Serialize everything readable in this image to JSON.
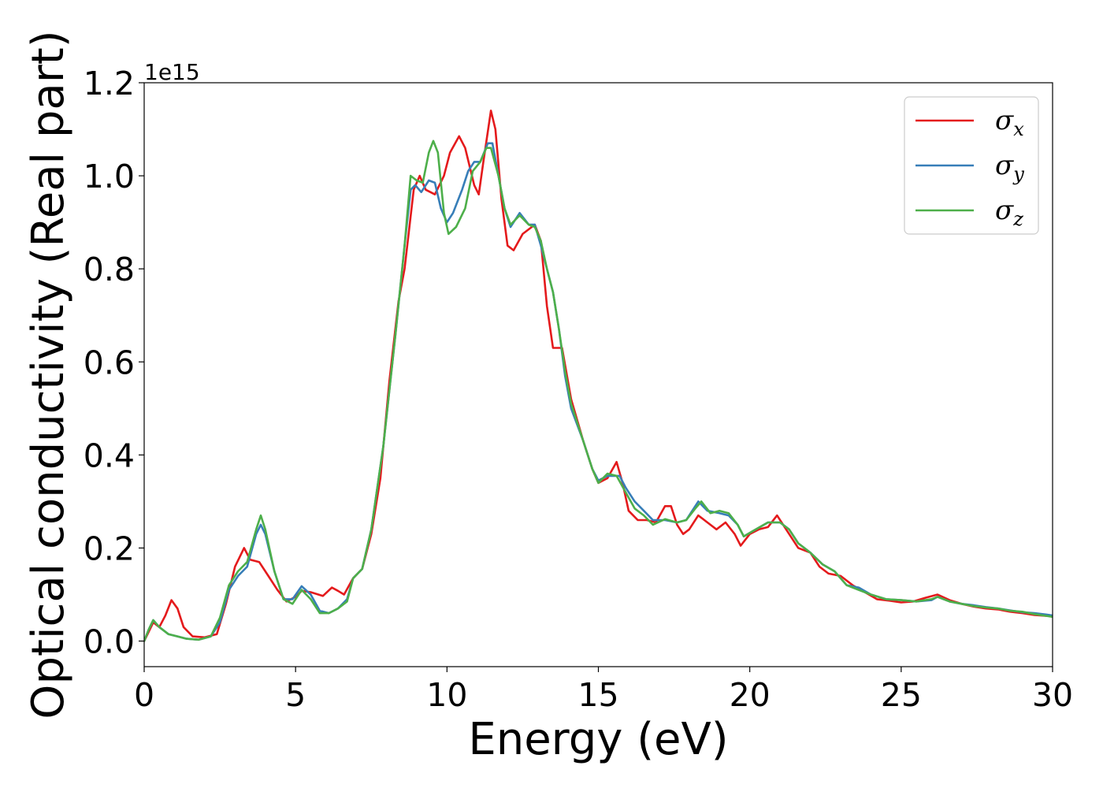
{
  "chart_data": {
    "type": "line",
    "xlabel": "Energy (eV)",
    "ylabel": "Optical conductivity (Real part)",
    "y_offset_label": "1e15",
    "xlim": [
      0,
      30
    ],
    "ylim": [
      -0.055,
      1.2
    ],
    "xticks": [
      0,
      5,
      10,
      15,
      20,
      25,
      30
    ],
    "xtick_labels": [
      "0",
      "5",
      "10",
      "15",
      "20",
      "25",
      "30"
    ],
    "yticks": [
      0.0,
      0.2,
      0.4,
      0.6,
      0.8,
      1.0,
      1.2
    ],
    "ytick_labels": [
      "0.0",
      "0.2",
      "0.4",
      "0.6",
      "0.8",
      "1.0",
      "1.2"
    ],
    "grid": false,
    "legend_position": "top-right",
    "series": [
      {
        "name": "σx",
        "sym": "σ",
        "sub": "x",
        "color": "#e41a1c",
        "points": [
          [
            0,
            0
          ],
          [
            0.15,
            0.02
          ],
          [
            0.3,
            0.04
          ],
          [
            0.5,
            0.03
          ],
          [
            0.7,
            0.055
          ],
          [
            0.9,
            0.088
          ],
          [
            1.1,
            0.07
          ],
          [
            1.3,
            0.03
          ],
          [
            1.6,
            0.01
          ],
          [
            2.0,
            0.008
          ],
          [
            2.4,
            0.015
          ],
          [
            2.7,
            0.08
          ],
          [
            3.0,
            0.16
          ],
          [
            3.3,
            0.2
          ],
          [
            3.5,
            0.175
          ],
          [
            3.8,
            0.17
          ],
          [
            4.1,
            0.14
          ],
          [
            4.4,
            0.11
          ],
          [
            4.7,
            0.085
          ],
          [
            5.0,
            0.095
          ],
          [
            5.2,
            0.108
          ],
          [
            5.5,
            0.105
          ],
          [
            5.9,
            0.097
          ],
          [
            6.2,
            0.115
          ],
          [
            6.4,
            0.108
          ],
          [
            6.6,
            0.1
          ],
          [
            6.9,
            0.135
          ],
          [
            7.2,
            0.155
          ],
          [
            7.5,
            0.23
          ],
          [
            7.8,
            0.35
          ],
          [
            8.1,
            0.56
          ],
          [
            8.4,
            0.73
          ],
          [
            8.6,
            0.8
          ],
          [
            8.9,
            0.97
          ],
          [
            9.1,
            1.0
          ],
          [
            9.3,
            0.97
          ],
          [
            9.6,
            0.96
          ],
          [
            9.9,
            1.0
          ],
          [
            10.1,
            1.05
          ],
          [
            10.4,
            1.085
          ],
          [
            10.6,
            1.06
          ],
          [
            10.9,
            0.98
          ],
          [
            11.05,
            0.96
          ],
          [
            11.2,
            1.03
          ],
          [
            11.45,
            1.14
          ],
          [
            11.6,
            1.1
          ],
          [
            11.8,
            0.95
          ],
          [
            12.0,
            0.85
          ],
          [
            12.2,
            0.84
          ],
          [
            12.5,
            0.875
          ],
          [
            12.9,
            0.895
          ],
          [
            13.1,
            0.86
          ],
          [
            13.3,
            0.72
          ],
          [
            13.5,
            0.63
          ],
          [
            13.8,
            0.63
          ],
          [
            14.1,
            0.52
          ],
          [
            14.5,
            0.43
          ],
          [
            14.8,
            0.37
          ],
          [
            15.0,
            0.34
          ],
          [
            15.3,
            0.35
          ],
          [
            15.6,
            0.385
          ],
          [
            15.8,
            0.34
          ],
          [
            16.0,
            0.28
          ],
          [
            16.3,
            0.26
          ],
          [
            16.6,
            0.26
          ],
          [
            16.9,
            0.255
          ],
          [
            17.2,
            0.29
          ],
          [
            17.4,
            0.29
          ],
          [
            17.6,
            0.25
          ],
          [
            17.8,
            0.23
          ],
          [
            18.0,
            0.24
          ],
          [
            18.3,
            0.27
          ],
          [
            18.6,
            0.255
          ],
          [
            18.9,
            0.24
          ],
          [
            19.2,
            0.255
          ],
          [
            19.5,
            0.23
          ],
          [
            19.7,
            0.205
          ],
          [
            20.0,
            0.23
          ],
          [
            20.3,
            0.24
          ],
          [
            20.6,
            0.245
          ],
          [
            20.9,
            0.27
          ],
          [
            21.2,
            0.24
          ],
          [
            21.6,
            0.2
          ],
          [
            22.0,
            0.19
          ],
          [
            22.3,
            0.16
          ],
          [
            22.6,
            0.145
          ],
          [
            23.0,
            0.14
          ],
          [
            23.4,
            0.12
          ],
          [
            23.8,
            0.105
          ],
          [
            24.2,
            0.09
          ],
          [
            24.6,
            0.087
          ],
          [
            25.0,
            0.083
          ],
          [
            25.4,
            0.085
          ],
          [
            25.8,
            0.093
          ],
          [
            26.2,
            0.1
          ],
          [
            26.6,
            0.088
          ],
          [
            27.0,
            0.08
          ],
          [
            27.4,
            0.074
          ],
          [
            27.8,
            0.07
          ],
          [
            28.2,
            0.068
          ],
          [
            28.6,
            0.063
          ],
          [
            29.0,
            0.06
          ],
          [
            29.4,
            0.056
          ],
          [
            29.8,
            0.054
          ],
          [
            30.0,
            0.054
          ]
        ]
      },
      {
        "name": "σy",
        "sym": "σ",
        "sub": "y",
        "color": "#377eb8",
        "points": [
          [
            0,
            0
          ],
          [
            0.15,
            0.025
          ],
          [
            0.3,
            0.045
          ],
          [
            0.5,
            0.03
          ],
          [
            0.8,
            0.015
          ],
          [
            1.1,
            0.01
          ],
          [
            1.4,
            0.005
          ],
          [
            1.8,
            0.003
          ],
          [
            2.2,
            0.01
          ],
          [
            2.5,
            0.04
          ],
          [
            2.8,
            0.11
          ],
          [
            3.1,
            0.14
          ],
          [
            3.4,
            0.16
          ],
          [
            3.7,
            0.23
          ],
          [
            3.85,
            0.25
          ],
          [
            4.0,
            0.23
          ],
          [
            4.3,
            0.15
          ],
          [
            4.6,
            0.09
          ],
          [
            4.9,
            0.09
          ],
          [
            5.2,
            0.118
          ],
          [
            5.5,
            0.1
          ],
          [
            5.8,
            0.065
          ],
          [
            6.1,
            0.06
          ],
          [
            6.4,
            0.07
          ],
          [
            6.7,
            0.09
          ],
          [
            6.9,
            0.135
          ],
          [
            7.2,
            0.155
          ],
          [
            7.5,
            0.24
          ],
          [
            7.9,
            0.42
          ],
          [
            8.3,
            0.66
          ],
          [
            8.6,
            0.85
          ],
          [
            8.8,
            0.97
          ],
          [
            8.95,
            0.98
          ],
          [
            9.15,
            0.965
          ],
          [
            9.4,
            0.99
          ],
          [
            9.6,
            0.985
          ],
          [
            9.8,
            0.93
          ],
          [
            10.0,
            0.9
          ],
          [
            10.2,
            0.92
          ],
          [
            10.5,
            0.97
          ],
          [
            10.7,
            1.01
          ],
          [
            10.9,
            1.03
          ],
          [
            11.1,
            1.03
          ],
          [
            11.35,
            1.07
          ],
          [
            11.5,
            1.07
          ],
          [
            11.7,
            1.0
          ],
          [
            11.9,
            0.93
          ],
          [
            12.1,
            0.89
          ],
          [
            12.4,
            0.92
          ],
          [
            12.7,
            0.895
          ],
          [
            12.9,
            0.895
          ],
          [
            13.1,
            0.85
          ],
          [
            13.3,
            0.8
          ],
          [
            13.5,
            0.75
          ],
          [
            13.7,
            0.67
          ],
          [
            13.9,
            0.57
          ],
          [
            14.1,
            0.5
          ],
          [
            14.5,
            0.43
          ],
          [
            14.8,
            0.37
          ],
          [
            15.0,
            0.345
          ],
          [
            15.3,
            0.355
          ],
          [
            15.5,
            0.355
          ],
          [
            15.7,
            0.355
          ],
          [
            15.9,
            0.33
          ],
          [
            16.2,
            0.3
          ],
          [
            16.5,
            0.28
          ],
          [
            16.8,
            0.26
          ],
          [
            17.2,
            0.26
          ],
          [
            17.6,
            0.255
          ],
          [
            17.9,
            0.26
          ],
          [
            18.3,
            0.3
          ],
          [
            18.6,
            0.28
          ],
          [
            19.0,
            0.275
          ],
          [
            19.3,
            0.27
          ],
          [
            19.6,
            0.25
          ],
          [
            19.8,
            0.225
          ],
          [
            20.2,
            0.24
          ],
          [
            20.6,
            0.255
          ],
          [
            21.0,
            0.255
          ],
          [
            21.3,
            0.24
          ],
          [
            21.6,
            0.21
          ],
          [
            22.0,
            0.19
          ],
          [
            22.4,
            0.165
          ],
          [
            22.8,
            0.15
          ],
          [
            23.2,
            0.12
          ],
          [
            23.6,
            0.115
          ],
          [
            24.0,
            0.1
          ],
          [
            24.5,
            0.09
          ],
          [
            25.0,
            0.088
          ],
          [
            25.5,
            0.085
          ],
          [
            26.0,
            0.088
          ],
          [
            26.2,
            0.095
          ],
          [
            26.6,
            0.085
          ],
          [
            27.0,
            0.08
          ],
          [
            27.4,
            0.077
          ],
          [
            27.8,
            0.073
          ],
          [
            28.2,
            0.07
          ],
          [
            28.6,
            0.066
          ],
          [
            29.0,
            0.062
          ],
          [
            29.4,
            0.06
          ],
          [
            29.8,
            0.057
          ],
          [
            30.0,
            0.055
          ]
        ]
      },
      {
        "name": "σz",
        "sym": "σ",
        "sub": "z",
        "color": "#4daf4a",
        "points": [
          [
            0,
            0
          ],
          [
            0.15,
            0.025
          ],
          [
            0.3,
            0.045
          ],
          [
            0.5,
            0.03
          ],
          [
            0.8,
            0.015
          ],
          [
            1.1,
            0.01
          ],
          [
            1.4,
            0.005
          ],
          [
            1.8,
            0.003
          ],
          [
            2.2,
            0.01
          ],
          [
            2.5,
            0.05
          ],
          [
            2.8,
            0.12
          ],
          [
            3.1,
            0.15
          ],
          [
            3.4,
            0.17
          ],
          [
            3.7,
            0.24
          ],
          [
            3.85,
            0.27
          ],
          [
            4.0,
            0.24
          ],
          [
            4.3,
            0.15
          ],
          [
            4.6,
            0.09
          ],
          [
            4.9,
            0.08
          ],
          [
            5.2,
            0.11
          ],
          [
            5.5,
            0.09
          ],
          [
            5.8,
            0.06
          ],
          [
            6.1,
            0.06
          ],
          [
            6.4,
            0.07
          ],
          [
            6.7,
            0.085
          ],
          [
            6.9,
            0.135
          ],
          [
            7.2,
            0.155
          ],
          [
            7.5,
            0.24
          ],
          [
            7.9,
            0.42
          ],
          [
            8.3,
            0.66
          ],
          [
            8.6,
            0.85
          ],
          [
            8.8,
            1.0
          ],
          [
            9.0,
            0.99
          ],
          [
            9.2,
            0.985
          ],
          [
            9.4,
            1.05
          ],
          [
            9.55,
            1.075
          ],
          [
            9.7,
            1.05
          ],
          [
            9.9,
            0.92
          ],
          [
            10.05,
            0.875
          ],
          [
            10.3,
            0.89
          ],
          [
            10.6,
            0.93
          ],
          [
            10.85,
            1.01
          ],
          [
            11.1,
            1.03
          ],
          [
            11.3,
            1.06
          ],
          [
            11.45,
            1.06
          ],
          [
            11.7,
            1.0
          ],
          [
            11.9,
            0.93
          ],
          [
            12.1,
            0.895
          ],
          [
            12.4,
            0.915
          ],
          [
            12.7,
            0.895
          ],
          [
            12.9,
            0.89
          ],
          [
            13.1,
            0.86
          ],
          [
            13.3,
            0.8
          ],
          [
            13.5,
            0.75
          ],
          [
            13.7,
            0.67
          ],
          [
            13.9,
            0.58
          ],
          [
            14.1,
            0.51
          ],
          [
            14.5,
            0.43
          ],
          [
            14.8,
            0.37
          ],
          [
            15.0,
            0.34
          ],
          [
            15.3,
            0.36
          ],
          [
            15.6,
            0.355
          ],
          [
            15.9,
            0.32
          ],
          [
            16.2,
            0.285
          ],
          [
            16.5,
            0.27
          ],
          [
            16.8,
            0.25
          ],
          [
            17.2,
            0.262
          ],
          [
            17.6,
            0.255
          ],
          [
            17.9,
            0.26
          ],
          [
            18.2,
            0.285
          ],
          [
            18.4,
            0.3
          ],
          [
            18.7,
            0.275
          ],
          [
            19.0,
            0.28
          ],
          [
            19.3,
            0.275
          ],
          [
            19.6,
            0.25
          ],
          [
            19.8,
            0.225
          ],
          [
            20.2,
            0.24
          ],
          [
            20.6,
            0.255
          ],
          [
            21.0,
            0.255
          ],
          [
            21.3,
            0.24
          ],
          [
            21.6,
            0.21
          ],
          [
            22.0,
            0.19
          ],
          [
            22.4,
            0.165
          ],
          [
            22.8,
            0.15
          ],
          [
            23.2,
            0.12
          ],
          [
            23.6,
            0.11
          ],
          [
            24.0,
            0.1
          ],
          [
            24.5,
            0.09
          ],
          [
            25.0,
            0.088
          ],
          [
            25.5,
            0.085
          ],
          [
            26.0,
            0.09
          ],
          [
            26.2,
            0.095
          ],
          [
            26.6,
            0.085
          ],
          [
            27.0,
            0.08
          ],
          [
            27.4,
            0.075
          ],
          [
            27.8,
            0.072
          ],
          [
            28.2,
            0.07
          ],
          [
            28.6,
            0.065
          ],
          [
            29.0,
            0.063
          ],
          [
            29.4,
            0.058
          ],
          [
            29.8,
            0.054
          ],
          [
            30.0,
            0.052
          ]
        ]
      }
    ]
  }
}
